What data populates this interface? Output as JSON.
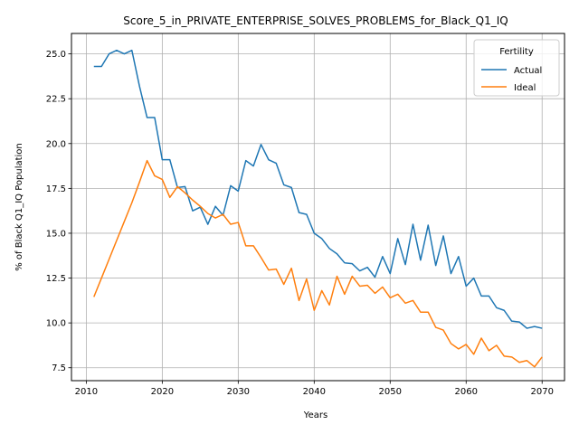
{
  "chart_data": {
    "type": "line",
    "title": "Score_5_in_PRIVATE_ENTERPRISE_SOLVES_PROBLEMS_for_Black_Q1_IQ",
    "xlabel": "Years",
    "ylabel": "% of Black Q1_IQ Population",
    "xlim": [
      2008.05,
      2072.95
    ],
    "ylim": [
      6.78,
      26.14
    ],
    "xticks": [
      2010,
      2020,
      2030,
      2040,
      2050,
      2060,
      2070
    ],
    "yticks": [
      7.5,
      10.0,
      12.5,
      15.0,
      17.5,
      20.0,
      22.5,
      25.0
    ],
    "grid": true,
    "legend": {
      "title": "Fertility",
      "placement": "top-right"
    },
    "x": [
      2011,
      2012,
      2013,
      2014,
      2015,
      2016,
      2017,
      2018,
      2019,
      2020,
      2021,
      2022,
      2023,
      2024,
      2025,
      2026,
      2027,
      2028,
      2029,
      2030,
      2031,
      2032,
      2033,
      2034,
      2035,
      2036,
      2037,
      2038,
      2039,
      2040,
      2041,
      2042,
      2043,
      2044,
      2045,
      2046,
      2047,
      2048,
      2049,
      2050,
      2051,
      2052,
      2053,
      2054,
      2055,
      2056,
      2057,
      2058,
      2059,
      2060,
      2061,
      2062,
      2063,
      2064,
      2065,
      2066,
      2067,
      2068,
      2069,
      2070
    ],
    "series": [
      {
        "name": "Actual",
        "color": "#1f77b4",
        "values": [
          24.3,
          24.3,
          25.0,
          25.2,
          25.0,
          25.2,
          23.2,
          21.45,
          21.45,
          19.1,
          19.1,
          17.55,
          17.6,
          16.25,
          16.45,
          15.5,
          16.5,
          16.0,
          17.65,
          17.35,
          19.05,
          18.75,
          19.95,
          19.1,
          18.9,
          17.7,
          17.55,
          16.15,
          16.05,
          15.0,
          14.7,
          14.15,
          13.85,
          13.35,
          13.3,
          12.9,
          13.1,
          12.55,
          13.7,
          12.75,
          14.7,
          13.25,
          15.5,
          13.5,
          15.45,
          13.2,
          14.85,
          12.75,
          13.7,
          12.05,
          12.5,
          11.5,
          11.5,
          10.85,
          10.7,
          10.1,
          10.05,
          9.7,
          9.8,
          9.7
        ]
      },
      {
        "name": "Ideal",
        "color": "#ff7f0e",
        "values": [
          11.45,
          12.5,
          13.55,
          14.6,
          15.65,
          16.7,
          17.85,
          19.05,
          18.2,
          18.0,
          17.0,
          17.6,
          17.25,
          16.85,
          16.5,
          16.1,
          15.85,
          16.05,
          15.5,
          15.6,
          14.3,
          14.3,
          13.65,
          12.95,
          13.0,
          12.15,
          13.05,
          11.25,
          12.45,
          10.7,
          11.8,
          11.0,
          12.6,
          11.6,
          12.6,
          12.05,
          12.1,
          11.65,
          12.0,
          11.4,
          11.6,
          11.1,
          11.25,
          10.6,
          10.6,
          9.75,
          9.6,
          8.85,
          8.55,
          8.8,
          8.25,
          9.15,
          8.45,
          8.75,
          8.15,
          8.1,
          7.8,
          7.9,
          7.55,
          8.1
        ]
      }
    ]
  }
}
